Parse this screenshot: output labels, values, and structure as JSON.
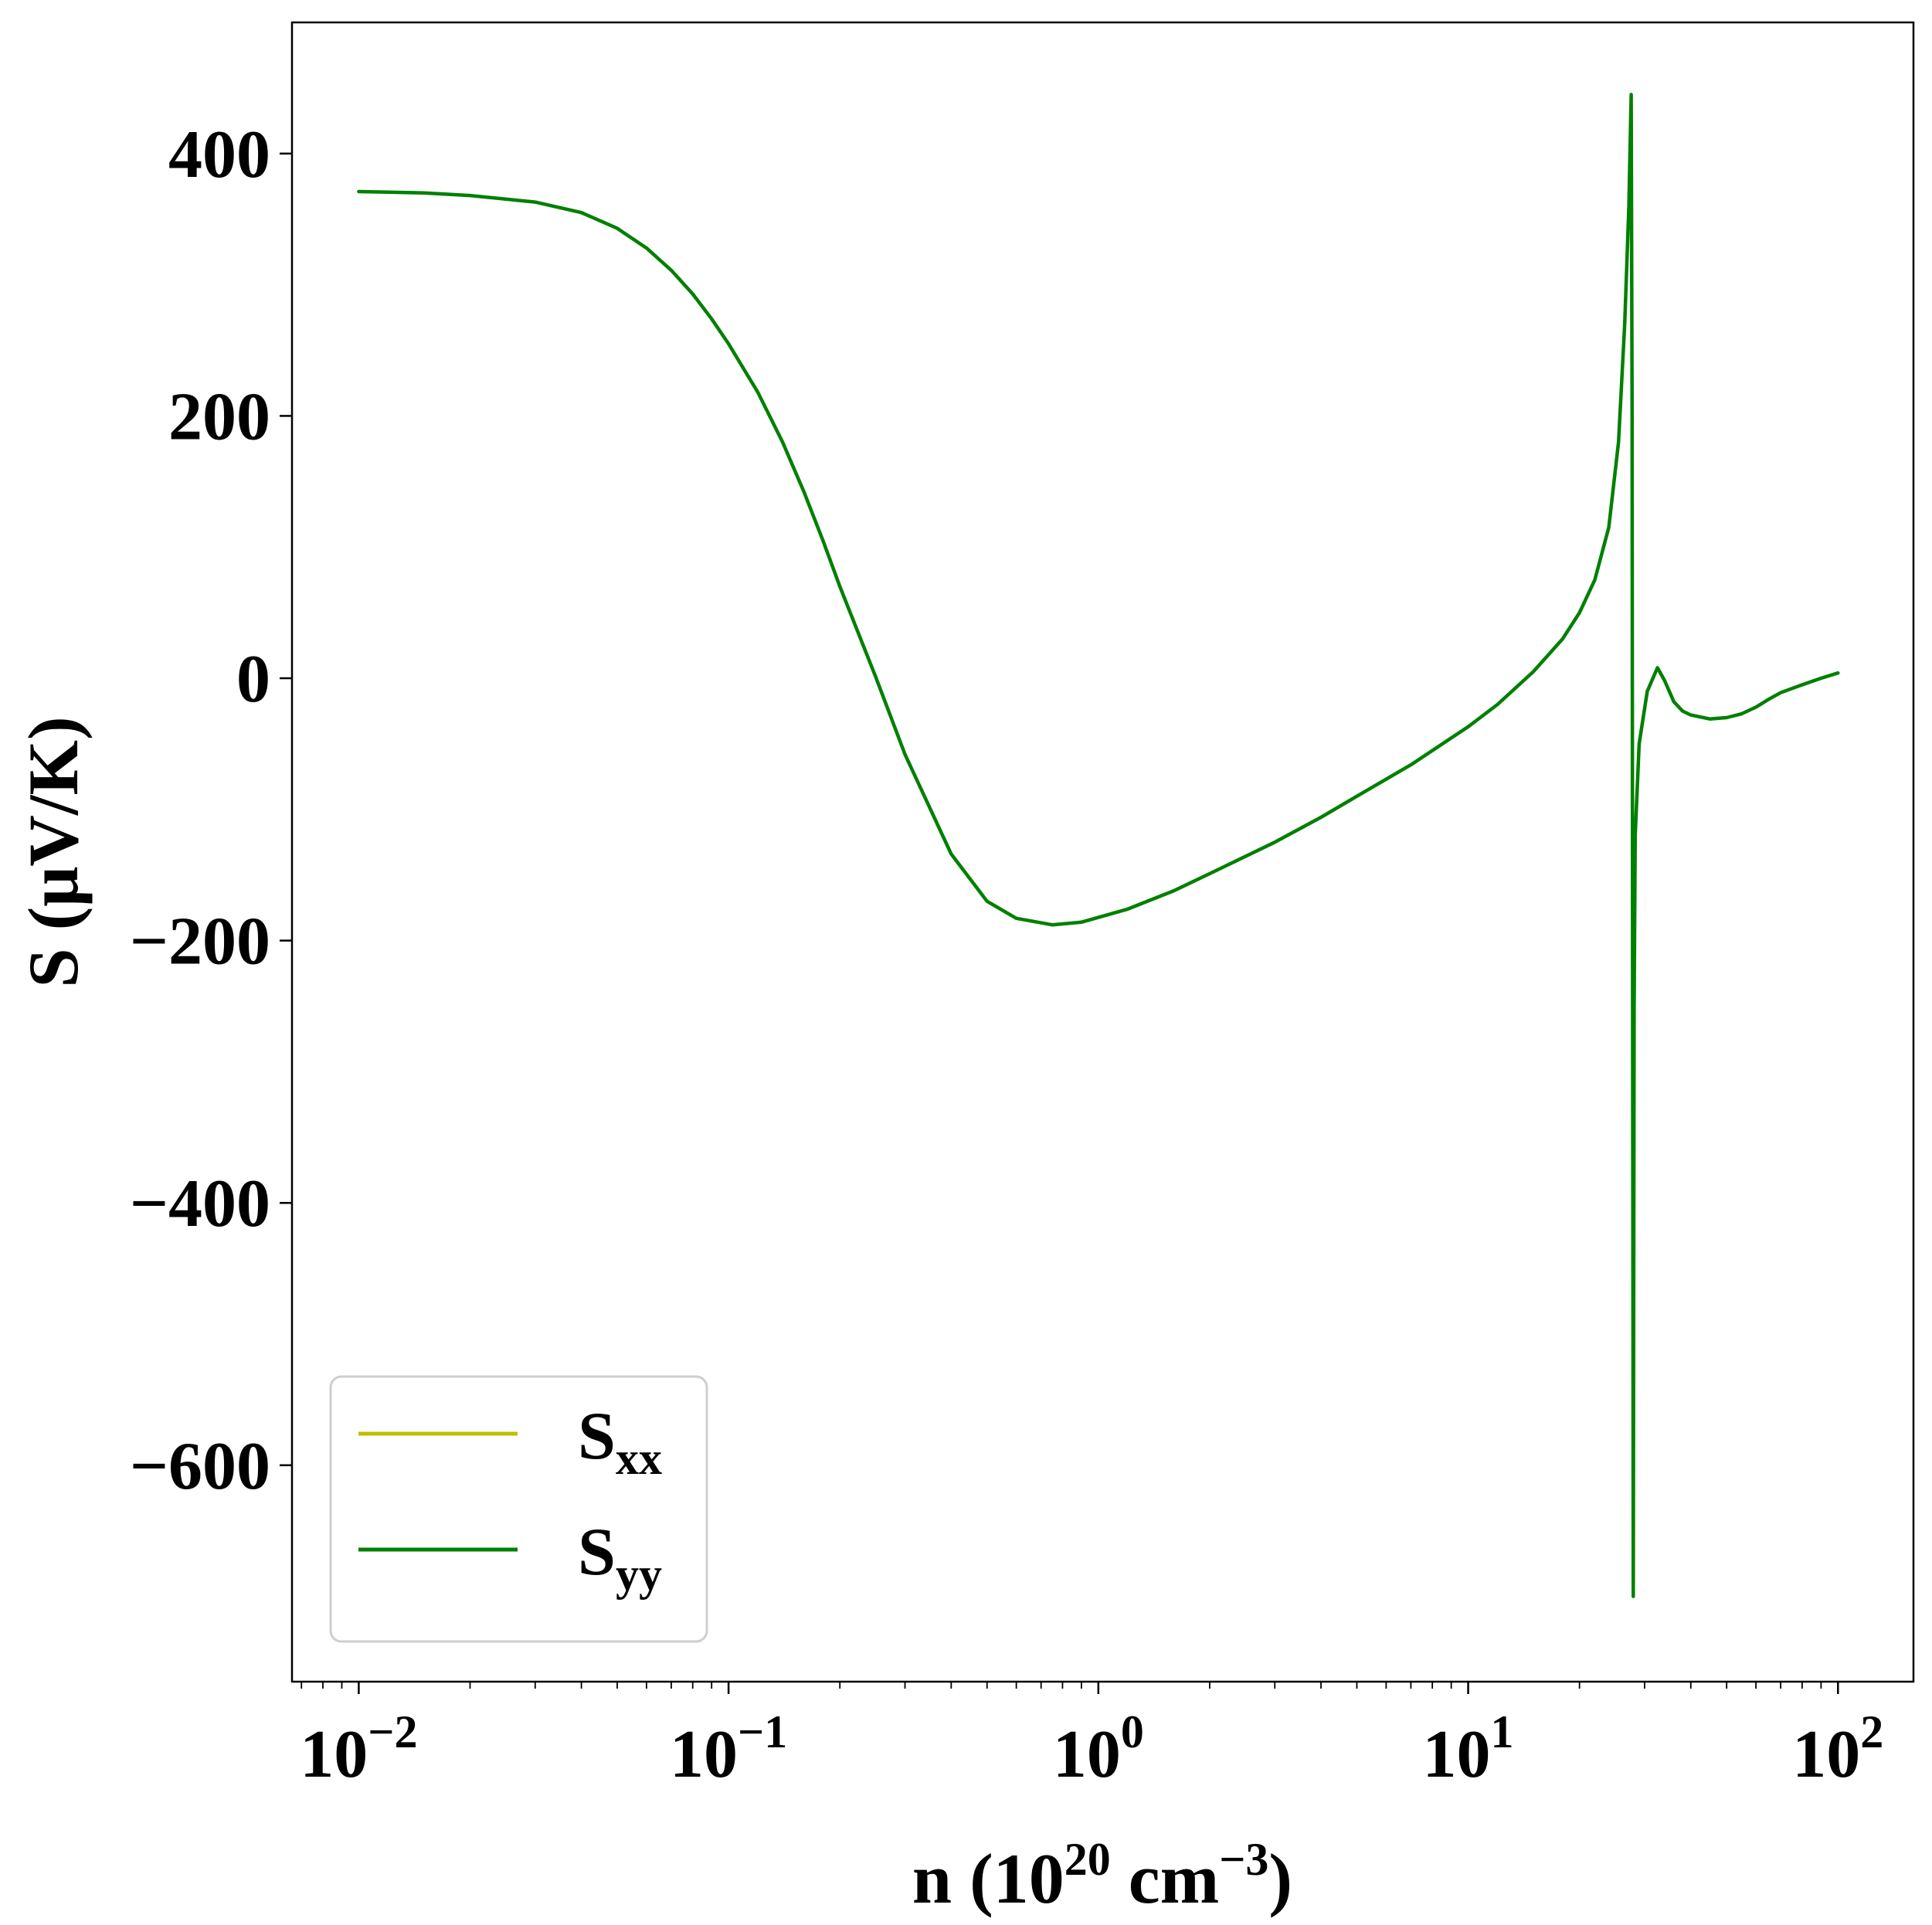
{
  "chart_data": {
    "type": "line",
    "x_scale": "log",
    "xlim": [
      0.0066,
      160
    ],
    "ylim": [
      -765,
      500
    ],
    "xlabel": {
      "parts": [
        "n (10",
        "20",
        " cm",
        "−3",
        ")"
      ]
    },
    "ylabel": "S (μV/K)",
    "x_ticks": [
      {
        "value": 0.01,
        "base": "10",
        "exp": "−2"
      },
      {
        "value": 0.1,
        "base": "10",
        "exp": "−1"
      },
      {
        "value": 1,
        "base": "10",
        "exp": "0"
      },
      {
        "value": 10,
        "base": "10",
        "exp": "1"
      },
      {
        "value": 100,
        "base": "10",
        "exp": "2"
      }
    ],
    "y_ticks": [
      {
        "value": 400,
        "label": "400"
      },
      {
        "value": 200,
        "label": "200"
      },
      {
        "value": 0,
        "label": "0"
      },
      {
        "value": -200,
        "label": "−200"
      },
      {
        "value": -400,
        "label": "−400"
      },
      {
        "value": -600,
        "label": "−600"
      }
    ],
    "grid": false,
    "legend_position": "lower-left",
    "series": [
      {
        "name": "S",
        "name_sub": "xx",
        "color": "#bfbf00",
        "x": [],
        "y": []
      },
      {
        "name": "S",
        "name_sub": "yy",
        "color": "#008000",
        "x": [
          0.01,
          0.015,
          0.02,
          0.03,
          0.04,
          0.05,
          0.06,
          0.07,
          0.08,
          0.09,
          0.1,
          0.12,
          0.14,
          0.16,
          0.18,
          0.2,
          0.25,
          0.3,
          0.4,
          0.5,
          0.6,
          0.75,
          0.9,
          1.2,
          1.6,
          2,
          3,
          4,
          5,
          7,
          10,
          12,
          15,
          18,
          20,
          22,
          24,
          25.5,
          26.5,
          27.2,
          27.6,
          27.75,
          27.85,
          27.95,
          28.1,
          28.3,
          29,
          30.5,
          32.5,
          34,
          36,
          38,
          40,
          45,
          50,
          55,
          60,
          65,
          70,
          80,
          90,
          100
        ],
        "y": [
          371,
          370,
          368,
          363,
          355,
          343,
          328,
          311,
          293,
          274,
          255,
          218,
          180,
          142,
          105,
          70,
          1,
          -58,
          -134,
          -170,
          -183,
          -188,
          -186,
          -176,
          -162,
          -149,
          -125,
          -106,
          -90,
          -66,
          -37,
          -20,
          5,
          30,
          50,
          75,
          115,
          180,
          270,
          360,
          445,
          200,
          -300,
          -700,
          -250,
          -120,
          -50,
          -10,
          8,
          -2,
          -18,
          -25,
          -28,
          -31,
          -30,
          -27,
          -22,
          -16,
          -11,
          -5,
          0,
          4
        ]
      }
    ]
  }
}
